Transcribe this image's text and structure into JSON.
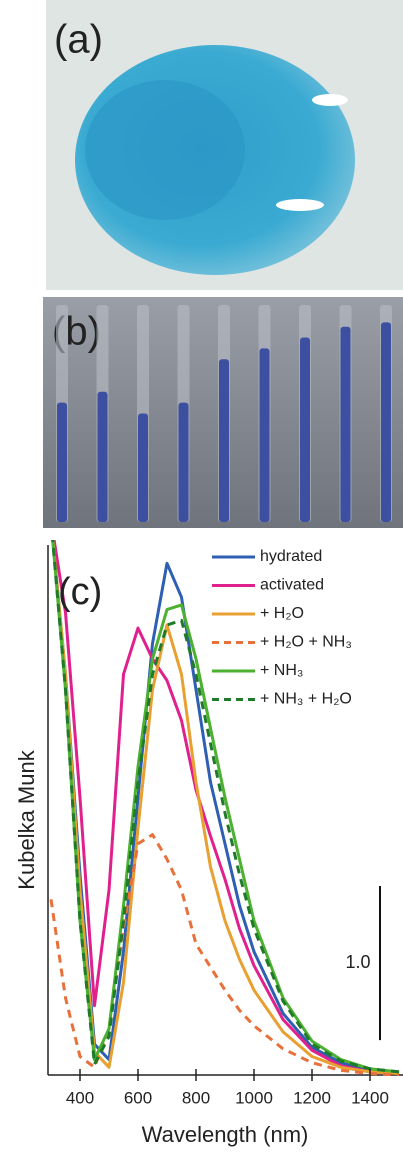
{
  "photo_a": {
    "label": "(a)"
  },
  "photo_b": {
    "label": "(b)"
  },
  "chart_data": {
    "type": "line",
    "panel_label": "(c)",
    "x_label": "Wavelength (nm)",
    "y_label": "Kubelka Munk",
    "x": [
      300,
      350,
      400,
      450,
      500,
      550,
      600,
      650,
      700,
      750,
      800,
      850,
      900,
      950,
      1000,
      1100,
      1200,
      1300,
      1400,
      1500
    ],
    "series": [
      {
        "name": "hydrated",
        "color": "#2f5fb3",
        "dash": false,
        "values": [
          3.6,
          2.6,
          1.3,
          0.2,
          0.1,
          0.8,
          1.8,
          2.8,
          3.32,
          3.1,
          2.5,
          1.9,
          1.5,
          1.1,
          0.8,
          0.4,
          0.18,
          0.08,
          0.03,
          0.01
        ]
      },
      {
        "name": "activated",
        "color": "#e0208c",
        "dash": false,
        "values": [
          3.6,
          3.0,
          1.8,
          0.45,
          1.2,
          2.6,
          2.9,
          2.7,
          2.56,
          2.3,
          1.85,
          1.55,
          1.27,
          0.95,
          0.71,
          0.36,
          0.16,
          0.06,
          0.02,
          0.01
        ]
      },
      {
        "name": "+ H₂O",
        "color": "#e8a030",
        "dash": false,
        "values": [
          3.6,
          2.6,
          1.2,
          0.15,
          0.05,
          0.6,
          1.6,
          2.5,
          2.92,
          2.6,
          1.9,
          1.35,
          1.0,
          0.75,
          0.55,
          0.28,
          0.12,
          0.05,
          0.02,
          0.01
        ]
      },
      {
        "name": "+ H₂O + NH₃",
        "color": "#e8703a",
        "dash": true,
        "values": [
          1.14,
          0.5,
          0.12,
          0.05,
          0.3,
          0.95,
          1.5,
          1.56,
          1.4,
          1.2,
          0.85,
          0.7,
          0.55,
          0.42,
          0.32,
          0.17,
          0.08,
          0.03,
          0.01,
          0
        ]
      },
      {
        "name": "+ NH₃",
        "color": "#4cb030",
        "dash": false,
        "values": [
          3.6,
          2.5,
          1.0,
          0.1,
          0.3,
          1.1,
          2.0,
          2.7,
          3.02,
          3.05,
          2.7,
          2.25,
          1.8,
          1.4,
          1.0,
          0.5,
          0.22,
          0.1,
          0.04,
          0.02
        ]
      },
      {
        "name": "+ NH₃ + H₂O",
        "color": "#1f7a2a",
        "dash": true,
        "values": [
          3.6,
          2.5,
          1.0,
          0.07,
          0.25,
          1.0,
          1.9,
          2.6,
          2.92,
          2.95,
          2.6,
          2.15,
          1.7,
          1.3,
          0.95,
          0.48,
          0.2,
          0.09,
          0.04,
          0.02
        ]
      }
    ],
    "xlim": [
      300,
      1500
    ],
    "ylim": [
      0,
      3.4
    ],
    "xticks": [
      400,
      600,
      800,
      1000,
      1200,
      1400
    ],
    "scale_bar": {
      "value": 1,
      "label": "1.0"
    },
    "legend": "top-right"
  }
}
